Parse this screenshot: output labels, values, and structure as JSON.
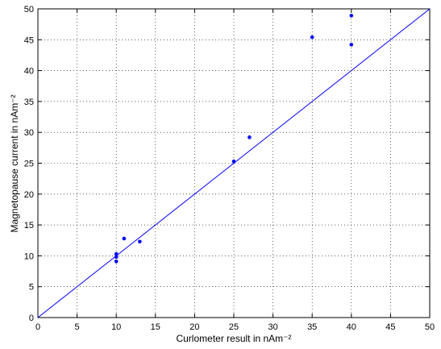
{
  "chart_data": {
    "type": "scatter",
    "xlabel": "Curlometer result in nAm⁻²",
    "ylabel": "Magnetopause current in nAm⁻²",
    "xlim": [
      0,
      50
    ],
    "ylim": [
      0,
      50
    ],
    "xticks": [
      0,
      5,
      10,
      15,
      20,
      25,
      30,
      35,
      40,
      45,
      50
    ],
    "yticks": [
      0,
      5,
      10,
      15,
      20,
      25,
      30,
      35,
      40,
      45,
      50
    ],
    "grid": true,
    "series": [
      {
        "mode": "markers",
        "color": "#0000ff",
        "x": [
          10,
          10,
          10,
          11,
          13,
          25,
          27,
          35,
          40,
          40
        ],
        "values": [
          10.3,
          9.8,
          9.1,
          12.8,
          12.3,
          25.3,
          29.2,
          45.4,
          48.9,
          44.2
        ]
      },
      {
        "mode": "line",
        "color": "#0000ff",
        "x": [
          0,
          50
        ],
        "values": [
          0,
          50
        ]
      }
    ]
  }
}
